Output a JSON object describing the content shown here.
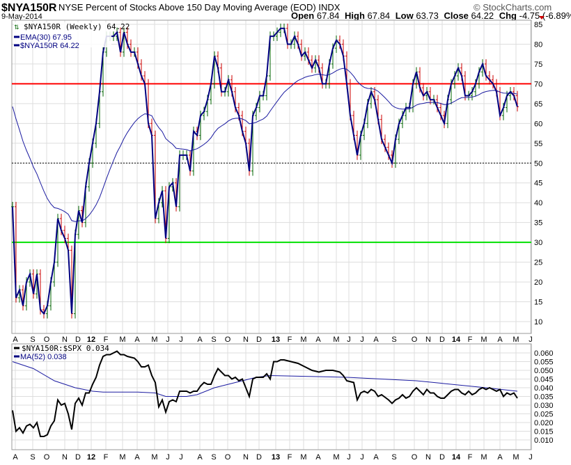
{
  "header": {
    "symbol": "$NYA150R",
    "title": "NYSE Percent of Stocks Above 150 Day Moving Average (EOD)",
    "exchange": "INDX",
    "date": "9-May-2014",
    "watermark": "© StockCharts.com",
    "open_label": "Open",
    "open": "67.84",
    "high_label": "High",
    "high": "67.84",
    "low_label": "Low",
    "low": "63.73",
    "close_label": "Close",
    "close": "64.22",
    "chg_label": "Chg",
    "chg": "-4.75 (-6.89%)"
  },
  "colors": {
    "price": "#000080",
    "ema": "#1a1aa0",
    "up": "#006400",
    "down": "#cc0000",
    "line70": "#ff0000",
    "line30": "#00e000",
    "ratio": "#000000",
    "ma": "#1a1aa0"
  },
  "chart_data": [
    {
      "type": "line",
      "panel": "main",
      "legend": [
        "$NYA150R (Weekly) 64.22",
        "EMA(30) 67.95",
        "$NYA150R 64.22"
      ],
      "ylim": [
        10,
        85
      ],
      "yticks": [
        85,
        80,
        75,
        70,
        65,
        60,
        55,
        50,
        45,
        40,
        35,
        30,
        25,
        20,
        15,
        10
      ],
      "hlines": [
        {
          "value": 70,
          "color": "red"
        },
        {
          "value": 30,
          "color": "green"
        },
        {
          "value": 50,
          "color": "black-dotted"
        }
      ],
      "ema_period": 30,
      "ema_seed": 66,
      "weekly_close": [
        39,
        16,
        18,
        14,
        20,
        22,
        17,
        22,
        13,
        12,
        14,
        20,
        25,
        36,
        33,
        31,
        28,
        12,
        32,
        38,
        35,
        44,
        50,
        55,
        60,
        68,
        78,
        82,
        82,
        82,
        83,
        78,
        83,
        80,
        78,
        78,
        75,
        72,
        70,
        60,
        57,
        36,
        40,
        43,
        31,
        44,
        45,
        39,
        52,
        52,
        52,
        48,
        58,
        57,
        62,
        63,
        66,
        70,
        77,
        74,
        68,
        68,
        71,
        68,
        64,
        62,
        58,
        55,
        48,
        62,
        64,
        67,
        67,
        72,
        82,
        82,
        83,
        84,
        84,
        80,
        80,
        82,
        80,
        77,
        78,
        76,
        74,
        76,
        74,
        70,
        70,
        75,
        79,
        81,
        80,
        77,
        70,
        62,
        57,
        52,
        57,
        60,
        65,
        68,
        66,
        61,
        56,
        54,
        52,
        50,
        56,
        60,
        62,
        64,
        64,
        70,
        73,
        69,
        67,
        68,
        66,
        66,
        64,
        62,
        60,
        66,
        70,
        72,
        74,
        72,
        67,
        67,
        68,
        70,
        73,
        75,
        72,
        71,
        70,
        68,
        62,
        64,
        67,
        68,
        67,
        64.22
      ]
    },
    {
      "type": "line",
      "panel": "lower",
      "legend": [
        "$NYA150R:$SPX 0.034",
        "MA(52) 0.038"
      ],
      "ylim": [
        0.007,
        0.063
      ],
      "yticks": [
        "0.060",
        "0.055",
        "0.050",
        "0.045",
        "0.040",
        "0.035",
        "0.030",
        "0.025",
        "0.020",
        "0.015",
        "0.010"
      ],
      "ratio": [
        [
          0,
          0.027
        ],
        [
          1,
          0.015
        ],
        [
          2,
          0.017
        ],
        [
          3,
          0.014
        ],
        [
          4,
          0.018
        ],
        [
          5,
          0.019
        ],
        [
          6,
          0.017
        ],
        [
          7,
          0.02
        ],
        [
          8,
          0.012
        ],
        [
          9,
          0.012
        ],
        [
          10,
          0.013
        ],
        [
          11,
          0.018
        ],
        [
          12,
          0.021
        ],
        [
          13,
          0.033
        ],
        [
          14,
          0.03
        ],
        [
          15,
          0.031
        ],
        [
          16,
          0.025
        ],
        [
          17,
          0.016
        ],
        [
          18,
          0.031
        ],
        [
          19,
          0.034
        ],
        [
          20,
          0.03
        ],
        [
          21,
          0.037
        ],
        [
          22,
          0.037
        ],
        [
          23,
          0.042
        ],
        [
          24,
          0.046
        ],
        [
          25,
          0.053
        ],
        [
          26,
          0.058
        ],
        [
          27,
          0.059
        ],
        [
          28,
          0.059
        ],
        [
          29,
          0.06
        ],
        [
          30,
          0.061
        ],
        [
          31,
          0.059
        ],
        [
          32,
          0.059
        ],
        [
          33,
          0.058
        ],
        [
          35,
          0.057
        ],
        [
          36,
          0.055
        ],
        [
          37,
          0.052
        ],
        [
          38,
          0.052
        ],
        [
          39,
          0.053
        ],
        [
          40,
          0.047
        ],
        [
          41,
          0.043
        ],
        [
          42,
          0.029
        ],
        [
          43,
          0.033
        ],
        [
          44,
          0.026
        ],
        [
          45,
          0.032
        ],
        [
          46,
          0.033
        ],
        [
          47,
          0.032
        ],
        [
          48,
          0.038
        ],
        [
          49,
          0.038
        ],
        [
          50,
          0.038
        ],
        [
          51,
          0.037
        ],
        [
          52,
          0.038
        ],
        [
          53,
          0.038
        ],
        [
          54,
          0.041
        ],
        [
          55,
          0.043
        ],
        [
          56,
          0.042
        ],
        [
          57,
          0.042
        ],
        [
          58,
          0.047
        ],
        [
          59,
          0.051
        ],
        [
          60,
          0.049
        ],
        [
          61,
          0.047
        ],
        [
          62,
          0.047
        ],
        [
          63,
          0.045
        ],
        [
          64,
          0.046
        ],
        [
          65,
          0.044
        ],
        [
          66,
          0.045
        ],
        [
          67,
          0.04
        ],
        [
          68,
          0.035
        ],
        [
          69,
          0.045
        ],
        [
          70,
          0.046
        ],
        [
          71,
          0.046
        ],
        [
          72,
          0.046
        ],
        [
          73,
          0.048
        ],
        [
          74,
          0.045
        ],
        [
          75,
          0.055
        ],
        [
          76,
          0.055
        ],
        [
          77,
          0.056
        ],
        [
          78,
          0.056
        ],
        [
          80,
          0.055
        ],
        [
          82,
          0.054
        ],
        [
          84,
          0.052
        ],
        [
          86,
          0.05
        ],
        [
          88,
          0.049
        ],
        [
          90,
          0.05
        ],
        [
          92,
          0.05
        ],
        [
          94,
          0.049
        ],
        [
          95,
          0.047
        ],
        [
          96,
          0.044
        ],
        [
          98,
          0.043
        ],
        [
          99,
          0.033
        ],
        [
          100,
          0.037
        ],
        [
          101,
          0.038
        ],
        [
          102,
          0.037
        ],
        [
          103,
          0.039
        ],
        [
          104,
          0.038
        ],
        [
          105,
          0.035
        ],
        [
          106,
          0.036
        ],
        [
          108,
          0.033
        ],
        [
          109,
          0.031
        ],
        [
          110,
          0.033
        ],
        [
          111,
          0.034
        ],
        [
          112,
          0.036
        ],
        [
          113,
          0.034
        ],
        [
          114,
          0.035
        ],
        [
          115,
          0.038
        ],
        [
          116,
          0.04
        ],
        [
          117,
          0.038
        ],
        [
          118,
          0.036
        ],
        [
          119,
          0.039
        ],
        [
          120,
          0.037
        ],
        [
          121,
          0.037
        ],
        [
          122,
          0.035
        ],
        [
          123,
          0.034
        ],
        [
          124,
          0.034
        ],
        [
          125,
          0.036
        ],
        [
          126,
          0.038
        ],
        [
          127,
          0.039
        ],
        [
          128,
          0.039
        ],
        [
          129,
          0.037
        ],
        [
          130,
          0.036
        ],
        [
          131,
          0.038
        ],
        [
          132,
          0.036
        ],
        [
          133,
          0.037
        ],
        [
          134,
          0.039
        ],
        [
          135,
          0.04
        ],
        [
          136,
          0.039
        ],
        [
          137,
          0.04
        ],
        [
          138,
          0.039
        ],
        [
          139,
          0.038
        ],
        [
          140,
          0.039
        ],
        [
          141,
          0.035
        ],
        [
          142,
          0.037
        ],
        [
          143,
          0.036
        ],
        [
          144,
          0.037
        ],
        [
          145,
          0.034
        ]
      ],
      "ma52": [
        [
          0,
          0.055
        ],
        [
          6,
          0.051
        ],
        [
          12,
          0.044
        ],
        [
          18,
          0.04
        ],
        [
          23,
          0.038
        ],
        [
          26,
          0.0375
        ],
        [
          36,
          0.0375
        ],
        [
          41,
          0.037
        ],
        [
          44,
          0.035
        ],
        [
          50,
          0.035
        ],
        [
          53,
          0.036
        ],
        [
          58,
          0.04
        ],
        [
          64,
          0.043
        ],
        [
          70,
          0.046
        ],
        [
          74,
          0.047
        ],
        [
          96,
          0.046
        ],
        [
          116,
          0.044
        ],
        [
          136,
          0.04
        ],
        [
          145,
          0.038
        ]
      ]
    }
  ],
  "x_axis": {
    "ticks": [
      [
        "A",
        0.8
      ],
      [
        "S",
        5.8
      ],
      [
        "O",
        9.8
      ],
      [
        "N",
        15
      ],
      [
        "D",
        18.8
      ],
      [
        "12",
        22.6
      ],
      [
        "F",
        26.8
      ],
      [
        "M",
        31.6
      ],
      [
        "A",
        35.8
      ],
      [
        "M",
        40.8
      ],
      [
        "J",
        44.6
      ],
      [
        "J",
        48.4
      ],
      [
        "A",
        53.8
      ],
      [
        "S",
        57.8
      ],
      [
        "O",
        61.8
      ],
      [
        "N",
        67
      ],
      [
        "D",
        70.8
      ],
      [
        "13",
        75.6
      ],
      [
        "F",
        79.6
      ],
      [
        "M",
        83.6
      ],
      [
        "A",
        87.8
      ],
      [
        "M",
        93
      ],
      [
        "J",
        96.6
      ],
      [
        "J",
        100.4
      ],
      [
        "A",
        104.4
      ],
      [
        "S",
        109.6
      ],
      [
        "O",
        115.4
      ],
      [
        "N",
        119.4
      ],
      [
        "D",
        123.4
      ],
      [
        "14",
        127.4
      ],
      [
        "F",
        131.4
      ],
      [
        "M",
        135.4
      ],
      [
        "A",
        140
      ],
      [
        "M",
        144.6
      ],
      [
        "J",
        148.8
      ]
    ]
  }
}
